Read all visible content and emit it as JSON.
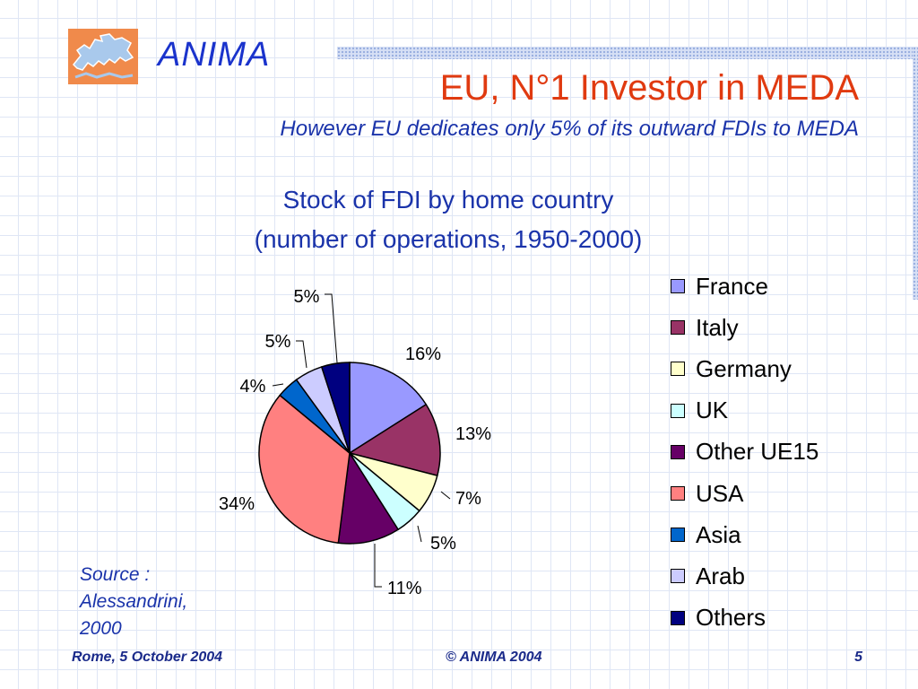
{
  "header": {
    "brand": "ANIMA",
    "title": "EU, N°1 Investor in MEDA",
    "subtitle": "However EU dedicates only 5% of its outward FDIs to MEDA"
  },
  "chart_data": {
    "type": "pie",
    "title_line1": "Stock of FDI by home country",
    "title_line2": "(number of operations, 1950-2000)",
    "legend_position": "right",
    "slices": [
      {
        "name": "France",
        "value": 16,
        "label": "16%",
        "color": "#9999ff"
      },
      {
        "name": "Italy",
        "value": 13,
        "label": "13%",
        "color": "#993366"
      },
      {
        "name": "Germany",
        "value": 7,
        "label": "7%",
        "color": "#ffffcc"
      },
      {
        "name": "UK",
        "value": 5,
        "label": "5%",
        "color": "#ccffff"
      },
      {
        "name": "Other UE15",
        "value": 11,
        "label": "11%",
        "color": "#660066"
      },
      {
        "name": "USA",
        "value": 34,
        "label": "34%",
        "color": "#ff8080"
      },
      {
        "name": "Asia",
        "value": 4,
        "label": "4%",
        "color": "#0066cc"
      },
      {
        "name": "Arab",
        "value": 5,
        "label": "5%",
        "color": "#ccccff"
      },
      {
        "name": "Others",
        "value": 5,
        "label": "5%",
        "color": "#000080"
      }
    ]
  },
  "source": {
    "line1": "Source :",
    "line2": "Alessandrini,",
    "line3": "2000"
  },
  "footer": {
    "left": "Rome, 5 October 2004",
    "center": "©  ANIMA 2004",
    "right": "5"
  }
}
